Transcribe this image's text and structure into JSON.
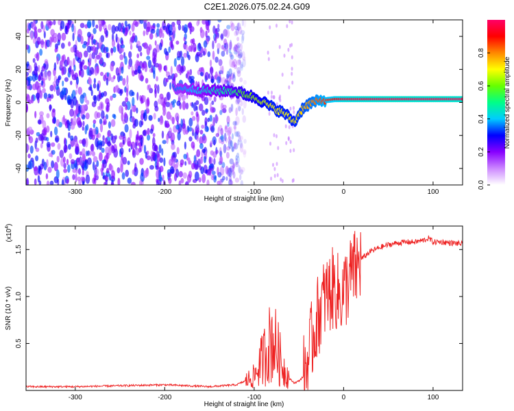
{
  "title": "C2E1.2026.075.02.24.G09",
  "chart_data": [
    {
      "type": "heatmap",
      "xlabel": "Height of straight line (km)",
      "ylabel": "Frequency (Hz)",
      "xlim": [
        -355,
        133
      ],
      "ylim": [
        -50,
        50
      ],
      "xticks": [
        -300,
        -200,
        -100,
        0,
        100
      ],
      "yticks": [
        -40,
        -20,
        0,
        20,
        40
      ],
      "colorbar": {
        "label": "Normalized spectral amplitude",
        "range": [
          0,
          1
        ],
        "ticks": [
          "0.0",
          "0.2",
          "0.4",
          "0.6",
          "0.8"
        ],
        "colors": [
          "#ffffff",
          "#cc88ff",
          "#8800ff",
          "#0000ff",
          "#00ccff",
          "#00ff88",
          "#66ff00",
          "#ffff00",
          "#ff8800",
          "#ff0000",
          "#ff0066"
        ]
      },
      "signal_trace": {
        "x": [
          -190,
          -150,
          -125,
          -110,
          -95,
          -80,
          -65,
          -55,
          -45,
          -35,
          -25,
          -10,
          0,
          50,
          100,
          133
        ],
        "freq": [
          9,
          7,
          7,
          5,
          2,
          -3,
          -7,
          -12,
          -3,
          0,
          1,
          2,
          2,
          2,
          2,
          2
        ],
        "amplitude": [
          0.35,
          0.45,
          0.5,
          0.6,
          0.65,
          0.7,
          0.7,
          0.7,
          0.75,
          0.8,
          0.85,
          0.9,
          0.95,
          0.98,
          0.98,
          0.98
        ]
      },
      "noise_region": {
        "x_start": -355,
        "x_end": -120,
        "amplitude_range": [
          0.1,
          0.35
        ]
      }
    },
    {
      "type": "line",
      "xlabel": "Height of straight line (km)",
      "ylabel": "SNR (10 * v/v)",
      "scale_label": "(x10",
      "scale_exp": "4",
      "scale_close": ")",
      "xlim": [
        -355,
        133
      ],
      "ylim": [
        0,
        1.75
      ],
      "xticks": [
        -300,
        -200,
        -100,
        0,
        100
      ],
      "yticks": [
        "0.5",
        "1.0",
        "1.5"
      ],
      "series": [
        {
          "name": "SNR",
          "color": "#ee2222",
          "x": [
            -355,
            -300,
            -250,
            -200,
            -150,
            -120,
            -110,
            -100,
            -95,
            -90,
            -85,
            -80,
            -75,
            -70,
            -65,
            -60,
            -55,
            -50,
            -45,
            -40,
            -35,
            -30,
            -25,
            -20,
            -15,
            -10,
            -5,
            0,
            5,
            10,
            15,
            20,
            30,
            40,
            50,
            60,
            70,
            80,
            90,
            95,
            100,
            110,
            120,
            133
          ],
          "y": [
            0.04,
            0.04,
            0.05,
            0.06,
            0.04,
            0.06,
            0.1,
            0.15,
            0.25,
            0.35,
            0.45,
            0.55,
            0.45,
            0.3,
            0.2,
            0.12,
            0.08,
            0.1,
            0.15,
            0.3,
            0.55,
            0.75,
            0.9,
            1.0,
            1.05,
            1.1,
            1.0,
            1.05,
            1.15,
            1.25,
            1.3,
            1.4,
            1.48,
            1.52,
            1.55,
            1.57,
            1.58,
            1.58,
            1.6,
            1.62,
            1.58,
            1.58,
            1.57,
            1.56
          ]
        }
      ]
    }
  ]
}
